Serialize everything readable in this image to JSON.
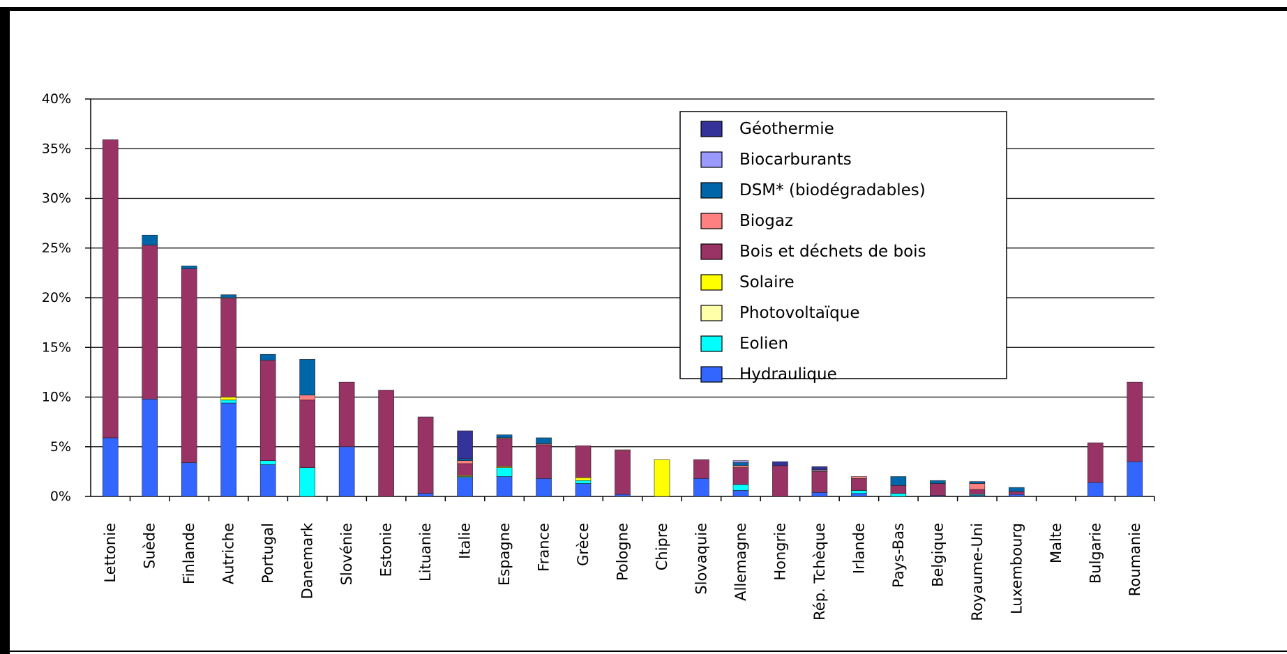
{
  "chart_data": {
    "type": "bar",
    "stacked": true,
    "title": "",
    "xlabel": "",
    "ylabel": "",
    "ylim": [
      0,
      40
    ],
    "yticks": [
      "0%",
      "5%",
      "10%",
      "15%",
      "20%",
      "25%",
      "30%",
      "35%",
      "40%"
    ],
    "grid": true,
    "legend_position": "top-right",
    "categories": [
      "Lettonie",
      "Suède",
      "Finlande",
      "Autriche",
      "Portugal",
      "Danemark",
      "Slovénie",
      "Estonie",
      "Lituanie",
      "Italie",
      "Espagne",
      "France",
      "Grèce",
      "Pologne",
      "Chipre",
      "Slovaquie",
      "Allemagne",
      "Hongrie",
      "Rép. Tchèque",
      "Irlande",
      "Pays-Bas",
      "Belgique",
      "Royaume-Uni",
      "Luxembourg",
      "Malte",
      "Bulgarie",
      "Roumanie"
    ],
    "series": [
      {
        "name": "Hydraulique",
        "color": "#3366ff",
        "values": [
          5.9,
          9.8,
          3.4,
          9.4,
          3.2,
          0,
          5.0,
          0,
          0.3,
          1.9,
          2.0,
          1.8,
          1.3,
          0.2,
          0,
          1.8,
          0.6,
          0,
          0.4,
          0.3,
          0,
          0.1,
          0.1,
          0.2,
          0,
          1.4,
          3.5
        ]
      },
      {
        "name": "Eolien",
        "color": "#00ffff",
        "values": [
          0,
          0,
          0,
          0.3,
          0.4,
          2.9,
          0,
          0,
          0,
          0.1,
          0.9,
          0,
          0.3,
          0,
          0,
          0,
          0.6,
          0,
          0,
          0.3,
          0.3,
          0,
          0.1,
          0,
          0,
          0,
          0
        ]
      },
      {
        "name": "Photovoltaïque",
        "color": "#ffffaa",
        "values": [
          0,
          0,
          0,
          0,
          0,
          0,
          0,
          0,
          0,
          0,
          0,
          0,
          0,
          0,
          0,
          0,
          0,
          0,
          0,
          0,
          0,
          0,
          0,
          0,
          0,
          0,
          0
        ]
      },
      {
        "name": "Solaire",
        "color": "#ffff00",
        "values": [
          0,
          0,
          0,
          0.3,
          0,
          0,
          0,
          0,
          0,
          0.1,
          0.1,
          0,
          0.3,
          0,
          3.7,
          0,
          0,
          0,
          0,
          0,
          0,
          0,
          0,
          0,
          0,
          0,
          0
        ]
      },
      {
        "name": "Bois et déchets de bois",
        "color": "#993366",
        "values": [
          30.0,
          15.5,
          19.5,
          9.9,
          10.1,
          6.8,
          6.5,
          10.7,
          7.7,
          1.2,
          2.8,
          3.4,
          3.2,
          4.4,
          0,
          1.9,
          1.7,
          3.1,
          2.1,
          1.2,
          0.8,
          1.2,
          0.5,
          0.3,
          0,
          4.0,
          8.0
        ]
      },
      {
        "name": "Biogaz",
        "color": "#ff8080",
        "values": [
          0,
          0,
          0,
          0.1,
          0,
          0.5,
          0,
          0,
          0,
          0.3,
          0.1,
          0.1,
          0,
          0.1,
          0,
          0,
          0.2,
          0,
          0.1,
          0.2,
          0,
          0,
          0.6,
          0,
          0,
          0,
          0
        ]
      },
      {
        "name": "DSM* (biodégradables)",
        "color": "#0066aa",
        "values": [
          0,
          1.0,
          0.3,
          0.3,
          0.6,
          3.6,
          0,
          0,
          0,
          0.2,
          0.3,
          0.6,
          0,
          0,
          0,
          0,
          0.3,
          0,
          0,
          0,
          0.9,
          0.3,
          0.2,
          0.4,
          0,
          0,
          0
        ]
      },
      {
        "name": "Biocarburants",
        "color": "#9999ff",
        "values": [
          0,
          0,
          0,
          0,
          0,
          0,
          0,
          0,
          0,
          0,
          0,
          0,
          0,
          0,
          0,
          0,
          0.2,
          0,
          0.1,
          0,
          0,
          0,
          0,
          0,
          0,
          0,
          0
        ]
      },
      {
        "name": "Géothermie",
        "color": "#333399",
        "values": [
          0,
          0,
          0,
          0,
          0,
          0,
          0,
          0,
          0,
          2.8,
          0,
          0,
          0,
          0,
          0,
          0,
          0,
          0.4,
          0.3,
          0,
          0,
          0,
          0,
          0,
          0,
          0,
          0
        ]
      }
    ],
    "legend_order": [
      "Géothermie",
      "Biocarburants",
      "DSM* (biodégradables)",
      "Biogaz",
      "Bois et déchets de bois",
      "Solaire",
      "Photovoltaïque",
      "Eolien",
      "Hydraulique"
    ]
  }
}
